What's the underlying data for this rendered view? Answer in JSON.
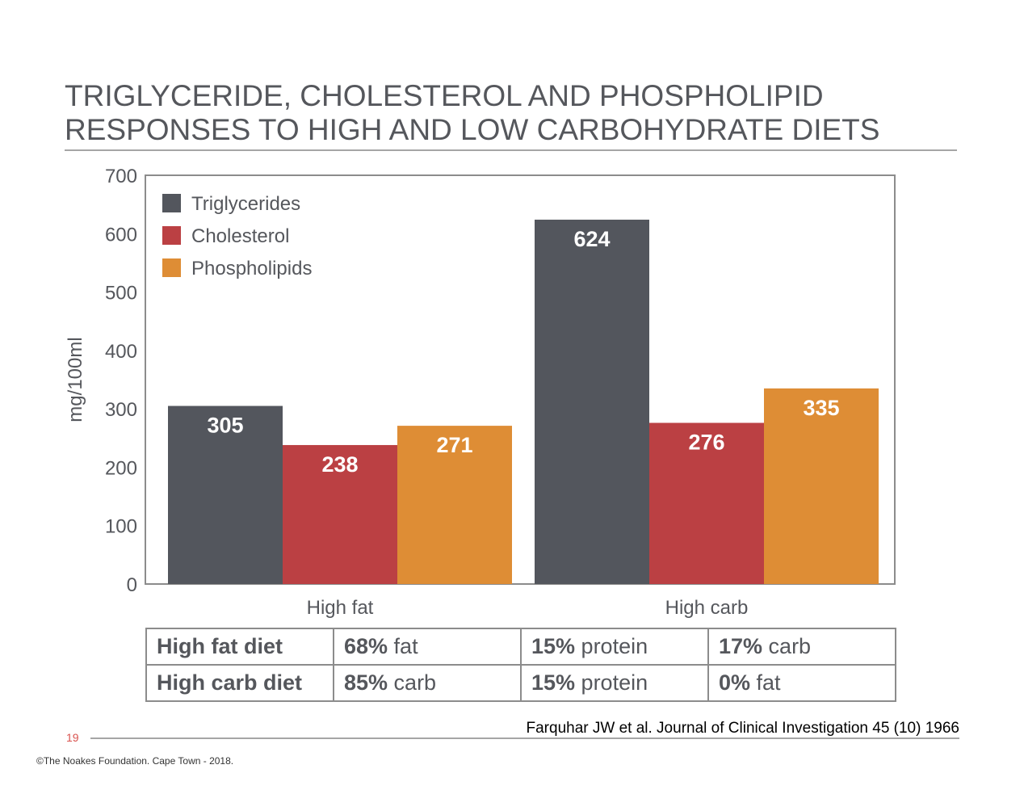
{
  "slide": {
    "title_line1": "TRIGLYCERIDE, CHOLESTEROL  AND PHOSPHOLIPID",
    "title_line2": "RESPONSES TO HIGH AND LOW CARBOHYDRATE DIETS",
    "citation": "Farquhar JW et al. Journal of Clinical Investigation 45 (10) 1966",
    "page_number": "19",
    "copyright": "©The Noakes Foundation. Cape Town - 2018."
  },
  "diet_table": {
    "rows": [
      {
        "label": "High fat diet",
        "cells": [
          {
            "pct": "68%",
            "nutrient": " fat"
          },
          {
            "pct": "15%",
            "nutrient": " protein"
          },
          {
            "pct": "17%",
            "nutrient": " carb"
          }
        ]
      },
      {
        "label": "High carb diet",
        "cells": [
          {
            "pct": "85%",
            "nutrient": " carb"
          },
          {
            "pct": "15%",
            "nutrient": " protein"
          },
          {
            "pct": "0%",
            "nutrient": " fat"
          }
        ]
      }
    ]
  },
  "chart_data": {
    "type": "bar",
    "title": "TRIGLYCERIDE, CHOLESTEROL AND PHOSPHOLIPID RESPONSES TO HIGH AND LOW CARBOHYDRATE DIETS",
    "xlabel": "",
    "ylabel": "mg/100ml",
    "ylim": [
      0,
      700
    ],
    "yticks": [
      0,
      100,
      200,
      300,
      400,
      500,
      600,
      700
    ],
    "grid": false,
    "legend_position": "top-left",
    "categories": [
      "High fat",
      "High carb"
    ],
    "series": [
      {
        "name": "Triglycerides",
        "color": "#53565d",
        "values": [
          305,
          624
        ]
      },
      {
        "name": "Cholesterol",
        "color": "#bb4043",
        "values": [
          238,
          276
        ]
      },
      {
        "name": "Phospholipids",
        "color": "#de8d35",
        "values": [
          271,
          335
        ]
      }
    ],
    "data_labels": true
  }
}
